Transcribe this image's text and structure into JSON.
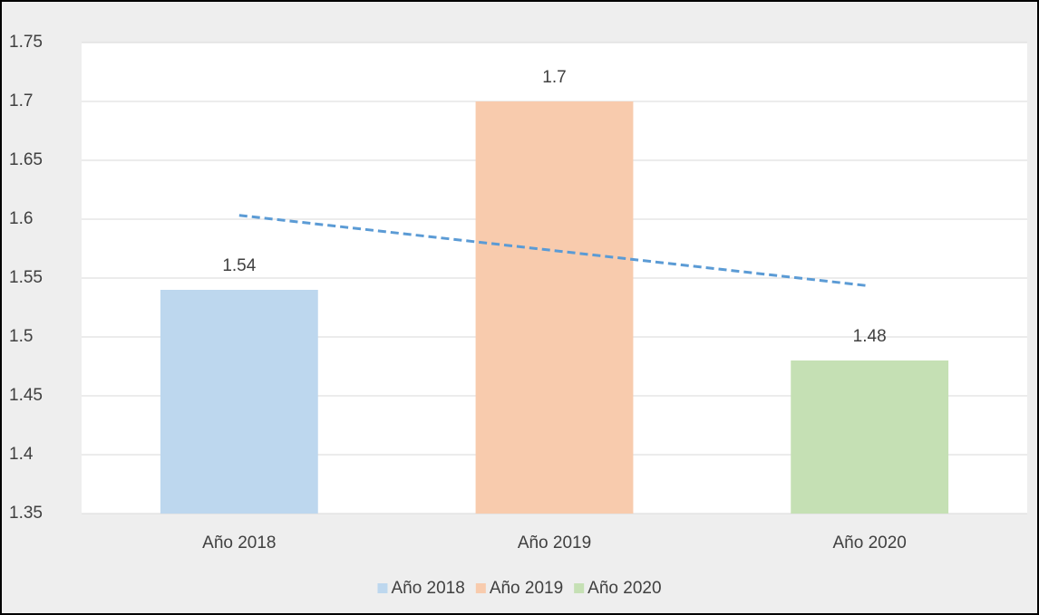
{
  "chart_data": {
    "type": "bar",
    "categories": [
      "Año 2018",
      "Año 2019",
      "Año 2020"
    ],
    "series": [
      {
        "name": "Año 2018",
        "color": "#bdd7ee",
        "values": [
          1.54,
          null,
          null
        ]
      },
      {
        "name": "Año 2019",
        "color": "#f8cbad",
        "values": [
          null,
          1.7,
          null
        ]
      },
      {
        "name": "Año 2020",
        "color": "#c5e0b4",
        "values": [
          null,
          null,
          1.48
        ]
      }
    ],
    "trendline": {
      "color": "#5b9bd5",
      "values": [
        1.6033,
        1.5733,
        1.5433
      ]
    },
    "ylim": [
      1.35,
      1.75
    ],
    "yticks": [
      1.35,
      1.4,
      1.45,
      1.5,
      1.55,
      1.6,
      1.65,
      1.7,
      1.75
    ],
    "grid": true,
    "legend": "bottom"
  }
}
